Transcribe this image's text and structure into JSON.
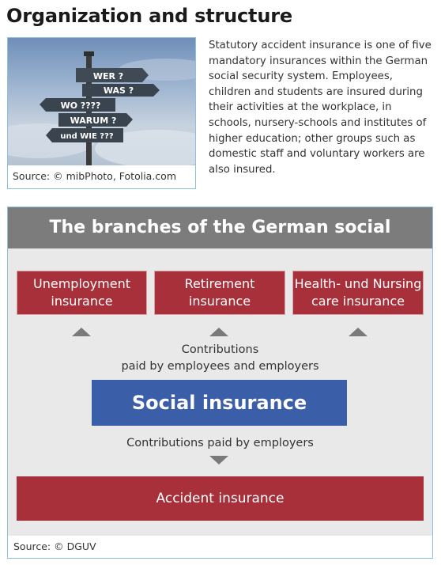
{
  "page": {
    "title": "Organization and structure"
  },
  "photo": {
    "caption": "Source: © mibPhoto, Fotolia.com",
    "signs": [
      "WER ?",
      "WAS ?",
      "WO ????",
      "WARUM ?",
      "und WIE ???"
    ]
  },
  "intro": {
    "text": "Statutory accident insurance is one of five mandatory insurances within the German social security system. Employees, children and students are insured during their activities at the workplace, in schools, nursery-schools and institutes of higher education; other groups such as domestic staff and voluntary workers are also insured."
  },
  "figure": {
    "title": "The branches of the German social insurance",
    "branches": [
      {
        "line1": "Unemployment",
        "line2": "insurance"
      },
      {
        "line1": "Retirement",
        "line2": "insurance"
      },
      {
        "line1": "Health- und Nursing",
        "line2": "care insurance"
      }
    ],
    "contrib_top": {
      "line1": "Contributions",
      "line2": "paid by employees and employers"
    },
    "social": "Social insurance",
    "contrib_bottom": "Contributions paid by employers",
    "accident": "Accident insurance",
    "source": "Source: © DGUV"
  },
  "colors": {
    "branch_red": "#a8303a",
    "social_blue": "#3a5ea8",
    "header_gray": "#7c7c7c",
    "body_gray": "#e9e9e9",
    "border_blue": "#8fc0db"
  }
}
